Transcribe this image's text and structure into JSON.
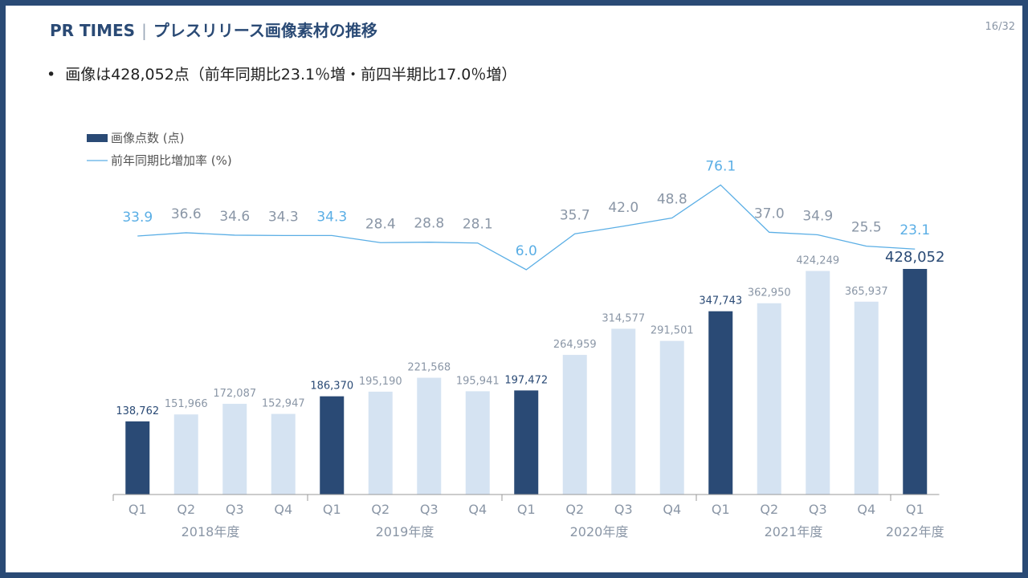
{
  "header": {
    "brand": "PR TIMES",
    "separator": "|",
    "title": "プレスリリース画像素材の推移",
    "page": "16/32"
  },
  "bullet": {
    "text": "画像は428,052点（前年同期比23.1％増・前四半期比17.0％増）"
  },
  "colors": {
    "dark_bar": "#2a4a75",
    "light_bar": "#d5e3f2",
    "line": "#5aaee5",
    "line_label_highlight": "#5aaee5",
    "line_label_default": "#8a96a6",
    "bar_label_dark": "#2a4a75",
    "bar_label_default": "#8a96a6"
  },
  "chart_data": {
    "type": "bar",
    "legend": [
      {
        "name": "画像点数 (点)",
        "kind": "bar"
      },
      {
        "name": "前年同期比増加率 (%)",
        "kind": "line"
      }
    ],
    "categories": [
      "Q1",
      "Q2",
      "Q3",
      "Q4",
      "Q1",
      "Q2",
      "Q3",
      "Q4",
      "Q1",
      "Q2",
      "Q3",
      "Q4",
      "Q1",
      "Q2",
      "Q3",
      "Q4",
      "Q1"
    ],
    "groups": [
      "2018年度",
      "2019年度",
      "2020年度",
      "2021年度",
      "2022年度"
    ],
    "series": [
      {
        "name": "画像点数 (点)",
        "type": "bar",
        "values": [
          138762,
          151966,
          172087,
          152947,
          186370,
          195190,
          221568,
          195941,
          197472,
          264959,
          314577,
          291501,
          347743,
          362950,
          424249,
          365937,
          428052
        ],
        "labels": [
          "138,762",
          "151,966",
          "172,087",
          "152,947",
          "186,370",
          "195,190",
          "221,568",
          "195,941",
          "197,472",
          "264,959",
          "314,577",
          "291,501",
          "347,743",
          "362,950",
          "424,249",
          "365,937",
          "428,052"
        ],
        "highlight": [
          true,
          false,
          false,
          false,
          true,
          false,
          false,
          false,
          true,
          false,
          false,
          false,
          true,
          false,
          false,
          false,
          true
        ]
      },
      {
        "name": "前年同期比増加率 (%)",
        "type": "line",
        "values": [
          33.9,
          36.6,
          34.6,
          34.3,
          34.3,
          28.4,
          28.8,
          28.1,
          6.0,
          35.7,
          42.0,
          48.8,
          76.1,
          37.0,
          34.9,
          25.5,
          23.1
        ],
        "labels": [
          "33.9",
          "36.6",
          "34.6",
          "34.3",
          "34.3",
          "28.4",
          "28.8",
          "28.1",
          "6.0",
          "35.7",
          "42.0",
          "48.8",
          "76.1",
          "37.0",
          "34.9",
          "25.5",
          "23.1"
        ],
        "highlight": [
          true,
          false,
          false,
          false,
          true,
          false,
          false,
          false,
          true,
          false,
          false,
          false,
          true,
          false,
          false,
          false,
          true
        ]
      }
    ],
    "ylim": [
      0,
      440000
    ]
  }
}
